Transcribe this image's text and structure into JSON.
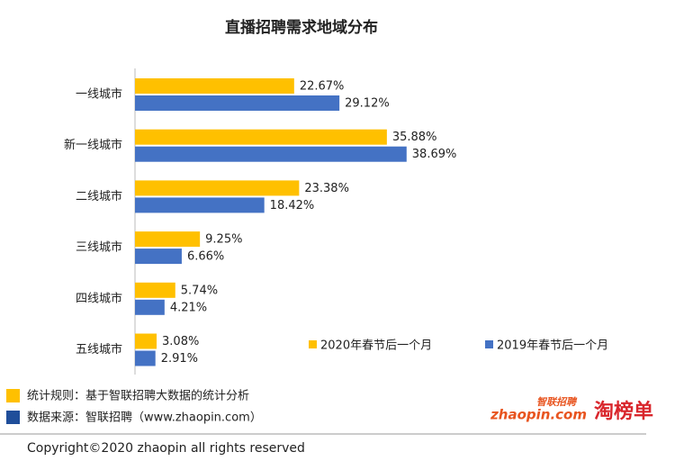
{
  "chart_data": {
    "type": "bar",
    "orientation": "horizontal",
    "title": "直播招聘需求地域分布",
    "categories": [
      "一线城市",
      "新一线城市",
      "二线城市",
      "三线城市",
      "四线城市",
      "五线城市"
    ],
    "series": [
      {
        "name": "2020年春节后一个月",
        "color": "#FFC000",
        "values": [
          22.67,
          35.88,
          23.38,
          9.25,
          5.74,
          3.08
        ],
        "value_labels": [
          "22.67%",
          "35.88%",
          "23.38%",
          "9.25%",
          "5.74%",
          "3.08%"
        ]
      },
      {
        "name": "2019年春节后一个月",
        "color": "#4472C4",
        "values": [
          29.12,
          38.69,
          18.42,
          6.66,
          4.21,
          2.91
        ],
        "value_labels": [
          "29.12%",
          "38.69%",
          "18.42%",
          "6.66%",
          "4.21%",
          "2.91%"
        ]
      }
    ],
    "xlim": [
      0,
      50
    ],
    "legend": "lower right"
  },
  "footer": {
    "notes": [
      {
        "text": "统计规则：基于智联招聘大数据的统计分析",
        "color": "#FFC000"
      },
      {
        "text": "数据来源：智联招聘（www.zhaopin.com）",
        "color": "#1F4E9A"
      }
    ],
    "logo_top": "智联招聘",
    "logo_main": "zhaopin.com",
    "logo_side": "淘榜单",
    "copyright": "Copyright©2020 zhaopin all rights reserved"
  }
}
